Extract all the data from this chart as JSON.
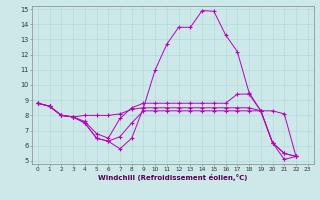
{
  "xlabel": "Windchill (Refroidissement éolien,°C)",
  "bg_color": "#cce8e8",
  "line_color": "#bb00bb",
  "xlim": [
    -0.5,
    23.5
  ],
  "ylim": [
    4.8,
    15.2
  ],
  "xticks": [
    0,
    1,
    2,
    3,
    4,
    5,
    6,
    7,
    8,
    9,
    10,
    11,
    12,
    13,
    14,
    15,
    16,
    17,
    18,
    19,
    20,
    21,
    22,
    23
  ],
  "yticks": [
    5,
    6,
    7,
    8,
    9,
    10,
    11,
    12,
    13,
    14,
    15
  ],
  "line1_x": [
    0,
    1,
    2,
    3,
    4,
    5,
    6,
    7,
    8,
    9,
    10,
    11,
    12,
    13,
    14,
    15,
    16,
    17,
    18,
    19,
    20,
    21,
    22
  ],
  "line1_y": [
    8.8,
    8.6,
    8.0,
    7.9,
    7.5,
    6.5,
    6.3,
    5.8,
    6.5,
    8.5,
    11.0,
    12.7,
    13.8,
    13.8,
    14.9,
    14.85,
    13.3,
    12.2,
    9.5,
    8.3,
    6.2,
    5.1,
    5.3
  ],
  "line2_x": [
    0,
    1,
    2,
    3,
    4,
    5,
    6,
    7,
    8,
    9,
    10,
    11,
    12,
    13,
    14,
    15,
    16,
    17,
    18,
    19,
    20,
    21,
    22
  ],
  "line2_y": [
    8.8,
    8.6,
    8.0,
    7.9,
    8.0,
    8.0,
    8.0,
    8.1,
    8.4,
    8.5,
    8.5,
    8.5,
    8.5,
    8.5,
    8.5,
    8.5,
    8.5,
    8.5,
    8.5,
    8.3,
    8.3,
    8.1,
    5.3
  ],
  "line3_x": [
    0,
    1,
    2,
    3,
    4,
    5,
    6,
    7,
    8,
    9,
    10,
    11,
    12,
    13,
    14,
    15,
    16,
    17,
    18,
    19,
    20,
    21,
    22
  ],
  "line3_y": [
    8.8,
    8.6,
    8.0,
    7.9,
    7.6,
    6.8,
    6.5,
    7.8,
    8.5,
    8.8,
    8.8,
    8.8,
    8.8,
    8.8,
    8.8,
    8.8,
    8.8,
    9.4,
    9.4,
    8.3,
    6.2,
    5.5,
    5.3
  ],
  "line4_x": [
    0,
    1,
    2,
    3,
    4,
    5,
    6,
    7,
    8,
    9,
    10,
    11,
    12,
    13,
    14,
    15,
    16,
    17,
    18,
    19,
    20,
    21,
    22
  ],
  "line4_y": [
    8.8,
    8.6,
    8.0,
    7.9,
    7.5,
    6.5,
    6.3,
    6.6,
    7.5,
    8.3,
    8.3,
    8.3,
    8.3,
    8.3,
    8.3,
    8.3,
    8.3,
    8.3,
    8.3,
    8.3,
    6.2,
    5.5,
    5.3
  ]
}
